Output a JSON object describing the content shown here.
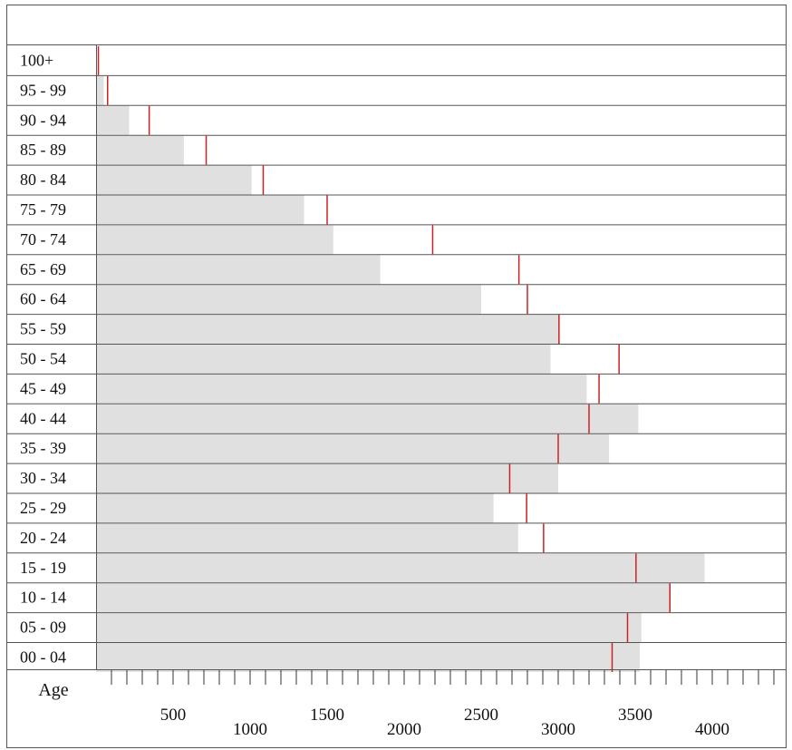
{
  "chart_data": {
    "type": "bar",
    "title": "",
    "xlabel": "",
    "ylabel": "Age",
    "xlim": [
      0,
      4400
    ],
    "x_ticks": [
      500,
      1000,
      1500,
      2000,
      2500,
      3000,
      3500,
      4000
    ],
    "minor_tick_step": 100,
    "grid": false,
    "categories": [
      "100+",
      "95 - 99",
      "90 - 94",
      "85 - 89",
      "80 - 84",
      "75 - 79",
      "70 - 74",
      "65 - 69",
      "60 - 64",
      "55 - 59",
      "50 - 54",
      "45 - 49",
      "40 - 44",
      "35 - 39",
      "30 - 34",
      "25 - 29",
      "20 - 24",
      "15 - 19",
      "10 - 14",
      "05 - 09",
      "00 - 04"
    ],
    "series": [
      {
        "kind": "bar",
        "values": [
          5,
          50,
          215,
          570,
          1010,
          1350,
          1540,
          1845,
          2500,
          3010,
          2950,
          3185,
          3520,
          3330,
          3000,
          2580,
          2740,
          3950,
          3730,
          3540,
          3530
        ],
        "color": "#e0e0e0"
      },
      {
        "kind": "marker",
        "values": [
          15,
          75,
          345,
          715,
          1085,
          1500,
          2185,
          2745,
          2800,
          3005,
          3395,
          3265,
          3200,
          3000,
          2685,
          2795,
          2905,
          3505,
          3725,
          3450,
          3350
        ],
        "color": "#cc2222"
      }
    ]
  }
}
